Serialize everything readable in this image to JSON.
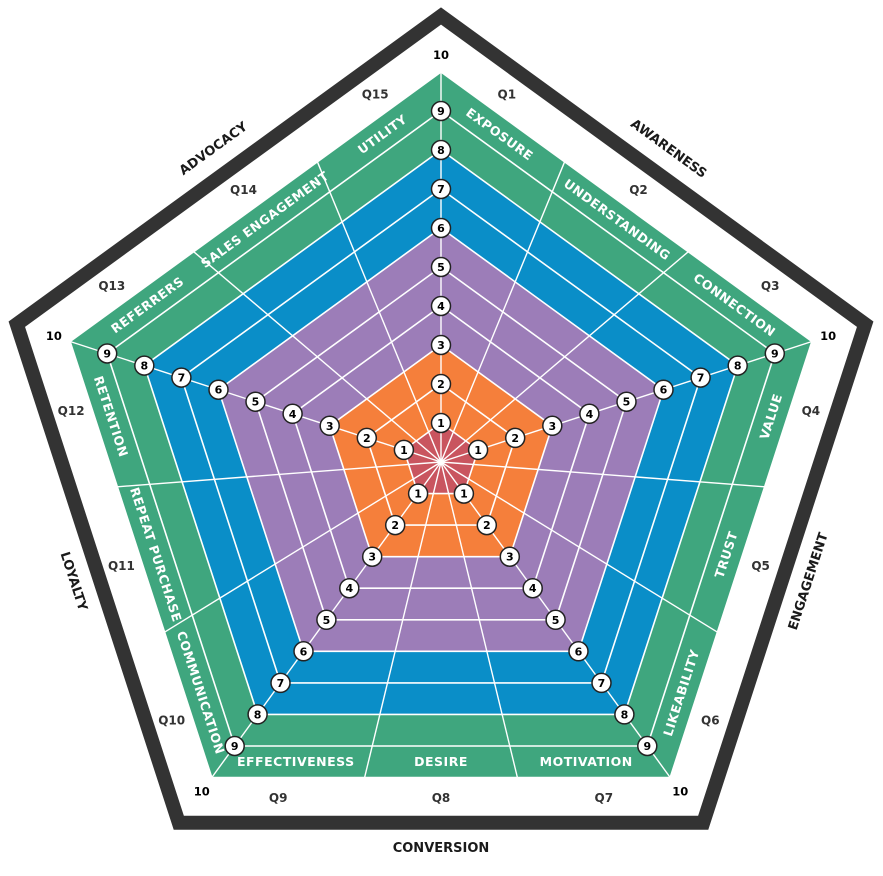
{
  "colors": {
    "frame": "#333333",
    "band_1": "#c9555f",
    "band_2_3": "#f57f3b",
    "band_4_6": "#9c7db8",
    "band_7_8": "#0a8ec8",
    "band_9_10": "#3fa67e",
    "grid_line": "#ffffff",
    "tick_badge_fill": "#ffffff",
    "tick_badge_stroke": "#222222"
  },
  "scale": {
    "ticks": [
      "1",
      "2",
      "3",
      "4",
      "5",
      "6",
      "7",
      "8",
      "9"
    ],
    "outer_label": "10"
  },
  "stages": [
    {
      "name": "AWARENESS"
    },
    {
      "name": "ENGAGEMENT"
    },
    {
      "name": "CONVERSION"
    },
    {
      "name": "LOYALTY"
    },
    {
      "name": "ADVOCACY"
    }
  ],
  "questions": [
    {
      "id": "Q1",
      "metric": "EXPOSURE"
    },
    {
      "id": "Q2",
      "metric": "UNDERSTANDING"
    },
    {
      "id": "Q3",
      "metric": "CONNECTION"
    },
    {
      "id": "Q4",
      "metric": "VALUE"
    },
    {
      "id": "Q5",
      "metric": "TRUST"
    },
    {
      "id": "Q6",
      "metric": "LIKEABILITY"
    },
    {
      "id": "Q7",
      "metric": "MOTIVATION"
    },
    {
      "id": "Q8",
      "metric": "DESIRE"
    },
    {
      "id": "Q9",
      "metric": "EFFECTIVENESS"
    },
    {
      "id": "Q10",
      "metric": "COMMUNICATION"
    },
    {
      "id": "Q11",
      "metric": "REPEAT PURCHASE"
    },
    {
      "id": "Q12",
      "metric": "RETENTION"
    },
    {
      "id": "Q13",
      "metric": "REFERRERS"
    },
    {
      "id": "Q14",
      "metric": "SALES ENGAGEMENT"
    },
    {
      "id": "Q15",
      "metric": "UTILITY"
    }
  ]
}
